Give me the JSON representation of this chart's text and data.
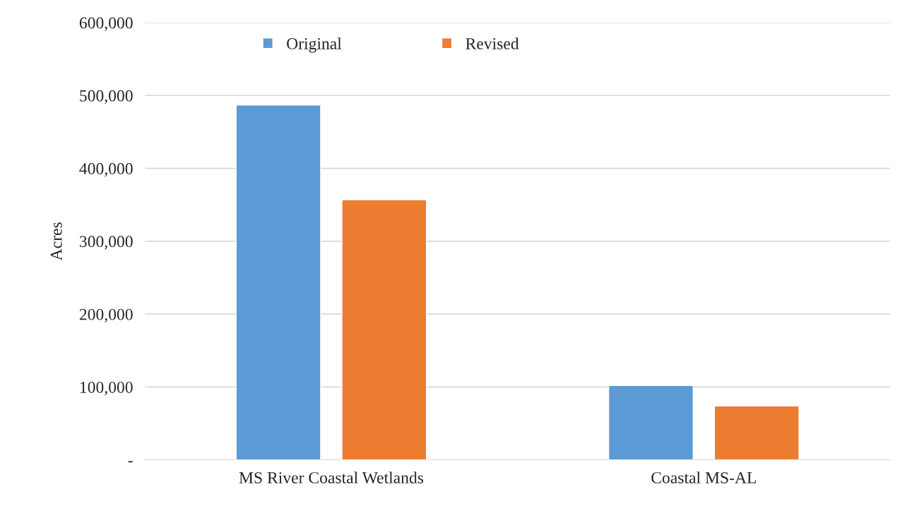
{
  "chart_data": {
    "type": "bar",
    "ylabel": "Acres",
    "categories": [
      "MS River Coastal Wetlands",
      "Coastal MS-AL"
    ],
    "series": [
      {
        "name": "Original",
        "color": "#5b9bd5",
        "values": [
          487000,
          102000
        ]
      },
      {
        "name": "Revised",
        "color": "#ed7d31",
        "values": [
          357000,
          74000
        ]
      }
    ],
    "ylim": [
      0,
      600000
    ],
    "yticks": [
      {
        "value": 0,
        "label": "-"
      },
      {
        "value": 100000,
        "label": "100,000"
      },
      {
        "value": 200000,
        "label": "200,000"
      },
      {
        "value": 300000,
        "label": "300,000"
      },
      {
        "value": 400000,
        "label": "400,000"
      },
      {
        "value": 500000,
        "label": "500,000"
      },
      {
        "value": 600000,
        "label": "600,000"
      }
    ],
    "grid": "y",
    "legend": "top"
  }
}
